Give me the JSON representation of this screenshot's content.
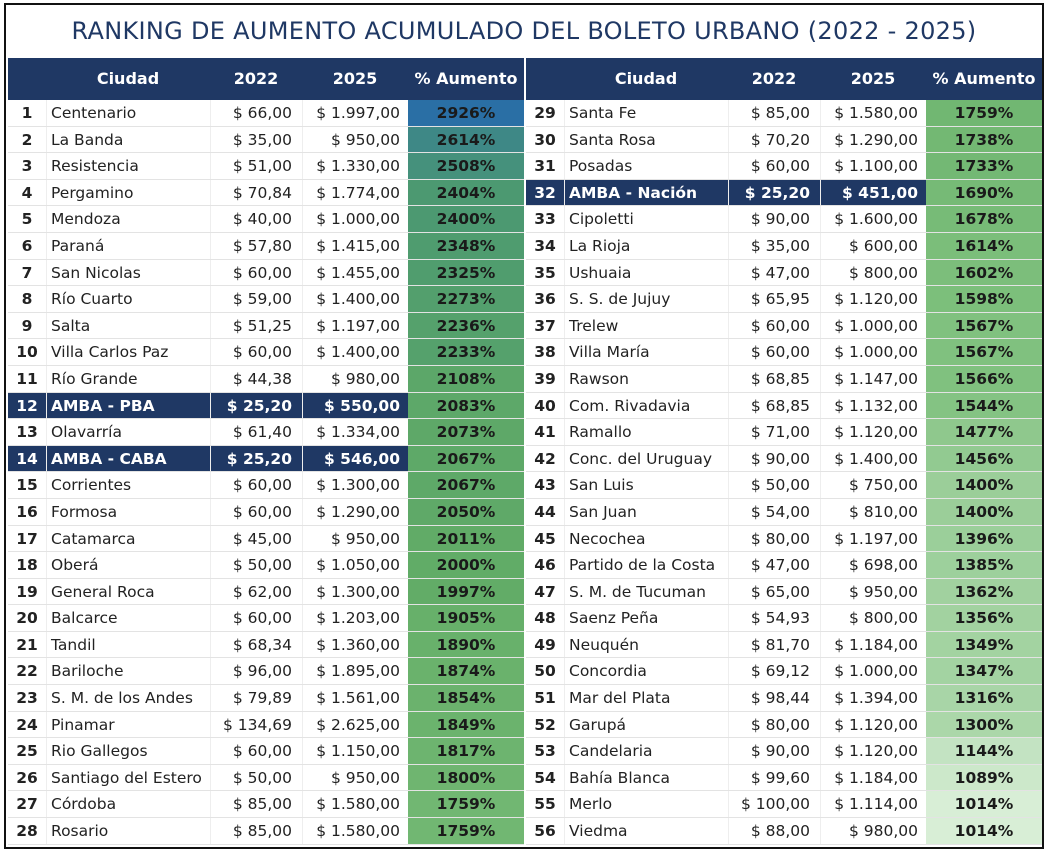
{
  "title": "RANKING DE AUMENTO ACUMULADO DEL BOLETO URBANO (2022 - 2025)",
  "tables": [
    {
      "header": [
        "Ciudad",
        "2022",
        "2025",
        "% Aumento"
      ],
      "rows": [
        {
          "cells": [
            "1",
            "Centenario",
            "$ 66,00",
            "$ 1.997,00",
            "2926%"
          ]
        },
        {
          "cells": [
            "2",
            "La Banda",
            "$ 35,00",
            "$ 950,00",
            "2614%"
          ]
        },
        {
          "cells": [
            "3",
            "Resistencia",
            "$ 51,00",
            "$ 1.330,00",
            "2508%"
          ]
        },
        {
          "cells": [
            "4",
            "Pergamino",
            "$ 70,84",
            "$ 1.774,00",
            "2404%"
          ]
        },
        {
          "cells": [
            "5",
            "Mendoza",
            "$ 40,00",
            "$ 1.000,00",
            "2400%"
          ]
        },
        {
          "cells": [
            "6",
            "Paraná",
            "$ 57,80",
            "$ 1.415,00",
            "2348%"
          ]
        },
        {
          "cells": [
            "7",
            "San Nicolas",
            "$ 60,00",
            "$ 1.455,00",
            "2325%"
          ]
        },
        {
          "cells": [
            "8",
            "Río Cuarto",
            "$ 59,00",
            "$ 1.400,00",
            "2273%"
          ]
        },
        {
          "cells": [
            "9",
            "Salta",
            "$ 51,25",
            "$ 1.197,00",
            "2236%"
          ]
        },
        {
          "cells": [
            "10",
            "Villa Carlos Paz",
            "$ 60,00",
            "$ 1.400,00",
            "2233%"
          ]
        },
        {
          "cells": [
            "11",
            "Río Grande",
            "$ 44,38",
            "$ 980,00",
            "2108%"
          ]
        },
        {
          "cells": [
            "12",
            "AMBA - PBA",
            "$ 25,20",
            "$ 550,00",
            "2083%"
          ],
          "highlight": true
        },
        {
          "cells": [
            "13",
            "Olavarría",
            "$ 61,40",
            "$ 1.334,00",
            "2073%"
          ]
        },
        {
          "cells": [
            "14",
            "AMBA - CABA",
            "$ 25,20",
            "$ 546,00",
            "2067%"
          ],
          "highlight": true
        },
        {
          "cells": [
            "15",
            "Corrientes",
            "$ 60,00",
            "$ 1.300,00",
            "2067%"
          ]
        },
        {
          "cells": [
            "16",
            "Formosa",
            "$ 60,00",
            "$ 1.290,00",
            "2050%"
          ]
        },
        {
          "cells": [
            "17",
            "Catamarca",
            "$ 45,00",
            "$ 950,00",
            "2011%"
          ]
        },
        {
          "cells": [
            "18",
            "Oberá",
            "$ 50,00",
            "$ 1.050,00",
            "2000%"
          ]
        },
        {
          "cells": [
            "19",
            "General Roca",
            "$ 62,00",
            "$ 1.300,00",
            "1997%"
          ]
        },
        {
          "cells": [
            "20",
            "Balcarce",
            "$ 60,00",
            "$ 1.203,00",
            "1905%"
          ]
        },
        {
          "cells": [
            "21",
            "Tandil",
            "$ 68,34",
            "$ 1.360,00",
            "1890%"
          ]
        },
        {
          "cells": [
            "22",
            "Bariloche",
            "$ 96,00",
            "$ 1.895,00",
            "1874%"
          ]
        },
        {
          "cells": [
            "23",
            "S. M. de los Andes",
            "$ 79,89",
            "$ 1.561,00",
            "1854%"
          ]
        },
        {
          "cells": [
            "24",
            "Pinamar",
            "$ 134,69",
            "$ 2.625,00",
            "1849%"
          ]
        },
        {
          "cells": [
            "25",
            "Rio Gallegos",
            "$ 60,00",
            "$ 1.150,00",
            "1817%"
          ]
        },
        {
          "cells": [
            "26",
            "Santiago del Estero",
            "$ 50,00",
            "$ 950,00",
            "1800%"
          ]
        },
        {
          "cells": [
            "27",
            "Córdoba",
            "$ 85,00",
            "$ 1.580,00",
            "1759%"
          ]
        },
        {
          "cells": [
            "28",
            "Rosario",
            "$ 85,00",
            "$ 1.580,00",
            "1759%"
          ]
        }
      ]
    },
    {
      "header": [
        "Ciudad",
        "2022",
        "2025",
        "% Aumento"
      ],
      "rows": [
        {
          "cells": [
            "29",
            "Santa Fe",
            "$ 85,00",
            "$ 1.580,00",
            "1759%"
          ]
        },
        {
          "cells": [
            "30",
            "Santa Rosa",
            "$ 70,20",
            "$ 1.290,00",
            "1738%"
          ]
        },
        {
          "cells": [
            "31",
            "Posadas",
            "$ 60,00",
            "$ 1.100,00",
            "1733%"
          ]
        },
        {
          "cells": [
            "32",
            "AMBA - Nación",
            "$ 25,20",
            "$ 451,00",
            "1690%"
          ],
          "highlight": true
        },
        {
          "cells": [
            "33",
            "Cipoletti",
            "$ 90,00",
            "$ 1.600,00",
            "1678%"
          ]
        },
        {
          "cells": [
            "34",
            "La Rioja",
            "$ 35,00",
            "$ 600,00",
            "1614%"
          ]
        },
        {
          "cells": [
            "35",
            "Ushuaia",
            "$ 47,00",
            "$ 800,00",
            "1602%"
          ]
        },
        {
          "cells": [
            "36",
            "S. S. de Jujuy",
            "$ 65,95",
            "$ 1.120,00",
            "1598%"
          ]
        },
        {
          "cells": [
            "37",
            "Trelew",
            "$ 60,00",
            "$ 1.000,00",
            "1567%"
          ]
        },
        {
          "cells": [
            "38",
            "Villa María",
            "$ 60,00",
            "$ 1.000,00",
            "1567%"
          ]
        },
        {
          "cells": [
            "39",
            "Rawson",
            "$ 68,85",
            "$ 1.147,00",
            "1566%"
          ]
        },
        {
          "cells": [
            "40",
            "Com. Rivadavia",
            "$ 68,85",
            "$ 1.132,00",
            "1544%"
          ]
        },
        {
          "cells": [
            "41",
            "Ramallo",
            "$ 71,00",
            "$ 1.120,00",
            "1477%"
          ]
        },
        {
          "cells": [
            "42",
            "Conc. del Uruguay",
            "$ 90,00",
            "$ 1.400,00",
            "1456%"
          ]
        },
        {
          "cells": [
            "43",
            "San Luis",
            "$ 50,00",
            "$ 750,00",
            "1400%"
          ]
        },
        {
          "cells": [
            "44",
            "San Juan",
            "$ 54,00",
            "$ 810,00",
            "1400%"
          ]
        },
        {
          "cells": [
            "45",
            "Necochea",
            "$ 80,00",
            "$ 1.197,00",
            "1396%"
          ]
        },
        {
          "cells": [
            "46",
            "Partido de la Costa",
            "$ 47,00",
            "$ 698,00",
            "1385%"
          ]
        },
        {
          "cells": [
            "47",
            "S. M. de Tucuman",
            "$ 65,00",
            "$ 950,00",
            "1362%"
          ]
        },
        {
          "cells": [
            "48",
            "Saenz Peña",
            "$ 54,93",
            "$ 800,00",
            "1356%"
          ]
        },
        {
          "cells": [
            "49",
            "Neuquén",
            "$ 81,70",
            "$ 1.184,00",
            "1349%"
          ]
        },
        {
          "cells": [
            "50",
            "Concordia",
            "$ 69,12",
            "$ 1.000,00",
            "1347%"
          ]
        },
        {
          "cells": [
            "51",
            "Mar del Plata",
            "$ 98,44",
            "$ 1.394,00",
            "1316%"
          ]
        },
        {
          "cells": [
            "52",
            "Garupá",
            "$ 80,00",
            "$ 1.120,00",
            "1300%"
          ]
        },
        {
          "cells": [
            "53",
            "Candelaria",
            "$ 90,00",
            "$ 1.120,00",
            "1144%"
          ]
        },
        {
          "cells": [
            "54",
            "Bahía Blanca",
            "$ 99,60",
            "$ 1.184,00",
            "1089%"
          ]
        },
        {
          "cells": [
            "55",
            "Merlo",
            "$ 100,00",
            "$ 1.114,00",
            "1014%"
          ]
        },
        {
          "cells": [
            "56",
            "Viedma",
            "$ 88,00",
            "$ 980,00",
            "1014%"
          ]
        }
      ]
    }
  ]
}
